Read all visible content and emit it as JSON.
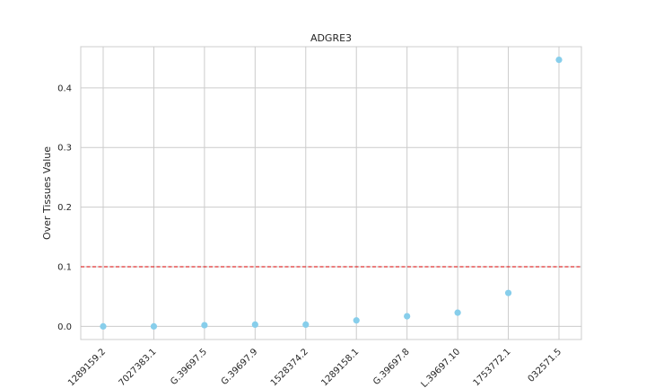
{
  "chart_data": {
    "type": "scatter",
    "title": "ADGRE3",
    "xlabel": "",
    "ylabel": "Over Tissues Value",
    "categories": [
      "1289159.2",
      "7027383.1",
      "G.39697.5",
      "G.39697.9",
      "1528374.2",
      "1289158.1",
      "G.39697.8",
      "L.39697.10",
      "1753772.1",
      "032571.5"
    ],
    "values": [
      0.0,
      0.0,
      0.002,
      0.003,
      0.003,
      0.01,
      0.017,
      0.023,
      0.056,
      0.447
    ],
    "ylim": [
      -0.022,
      0.469
    ],
    "yticks": [
      0.0,
      0.1,
      0.2,
      0.3,
      0.4
    ],
    "ytick_labels": [
      "0.0",
      "0.1",
      "0.2",
      "0.3",
      "0.4"
    ],
    "threshold": 0.1,
    "grid": true,
    "point_color": "#87ceeb",
    "threshold_color": "#e03030"
  }
}
